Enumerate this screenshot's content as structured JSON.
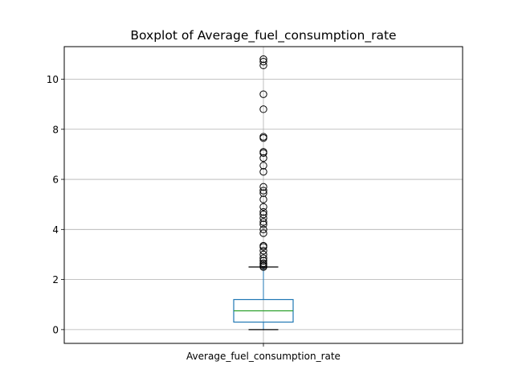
{
  "chart_data": {
    "type": "box",
    "title": "Boxplot of Average_fuel_consumption_rate",
    "xlabel": "",
    "ylabel": "",
    "categories": [
      "Average_fuel_consumption_rate"
    ],
    "ylim": [
      -0.55,
      11.3
    ],
    "yticks": [
      0,
      2,
      4,
      6,
      8,
      10
    ],
    "grid": true,
    "box": {
      "whisker_low": 0.0,
      "q1": 0.3,
      "median": 0.75,
      "q3": 1.2,
      "whisker_high": 2.5
    },
    "outliers": [
      2.5,
      2.55,
      2.6,
      2.65,
      2.75,
      2.85,
      3.0,
      3.15,
      3.3,
      3.35,
      3.85,
      4.0,
      4.2,
      4.3,
      4.45,
      4.6,
      4.7,
      4.9,
      5.2,
      5.45,
      5.55,
      5.7,
      6.3,
      6.55,
      6.85,
      7.05,
      7.1,
      7.65,
      7.7,
      8.8,
      9.4,
      10.55,
      10.7,
      10.8
    ],
    "colors": {
      "box": "#1f77b4",
      "median": "#2ca02c",
      "whisker": "#000000",
      "outlier_edge": "#000000",
      "grid": "#b0b0b0"
    }
  }
}
